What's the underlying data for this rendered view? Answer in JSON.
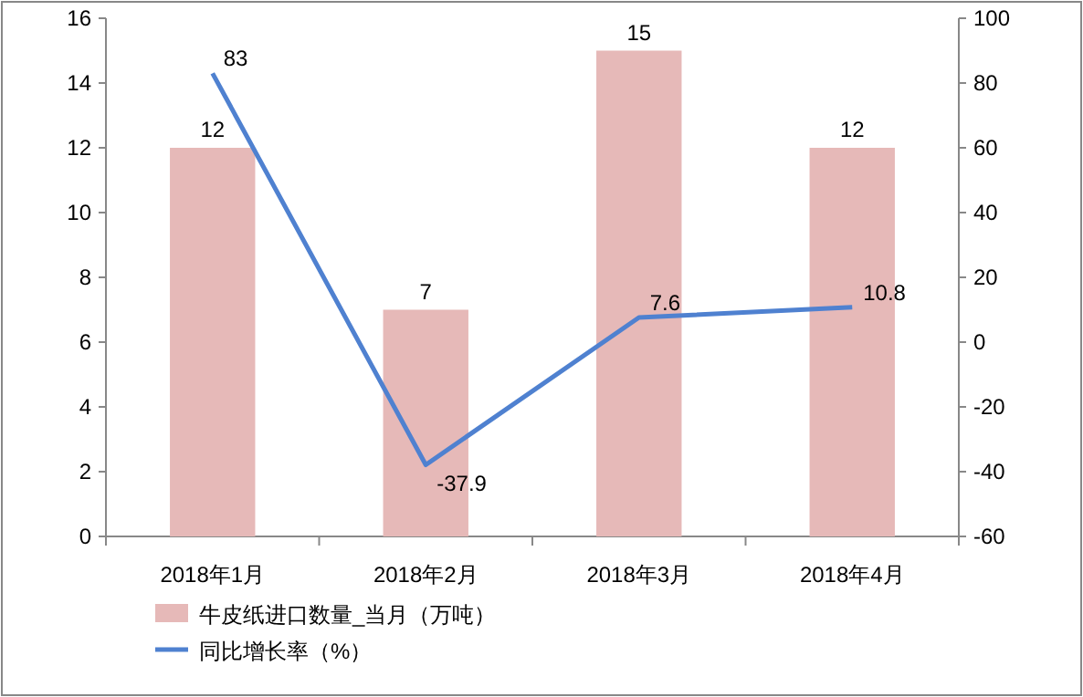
{
  "chart_data": {
    "type": "bar",
    "categories": [
      "2018年1月",
      "2018年2月",
      "2018年3月",
      "2018年4月"
    ],
    "series": [
      {
        "name": "牛皮纸进口数量_当月（万吨）",
        "color": "#e6b9b8",
        "values": [
          12,
          7,
          15,
          12
        ]
      },
      {
        "name": "同比增长率（%）",
        "type": "line",
        "axis": "y2",
        "color": "#4f81d0",
        "values": [
          83,
          -37.9,
          7.6,
          10.8
        ]
      }
    ],
    "ylim": [
      0,
      16
    ],
    "yticks": [
      0,
      2,
      4,
      6,
      8,
      10,
      12,
      14,
      16
    ],
    "y2lim": [
      -60,
      100
    ],
    "y2ticks": [
      -60,
      -40,
      -20,
      0,
      20,
      40,
      60,
      80,
      100
    ],
    "data_labels": true,
    "legend": "bottom",
    "grid": false,
    "marker": "none"
  }
}
